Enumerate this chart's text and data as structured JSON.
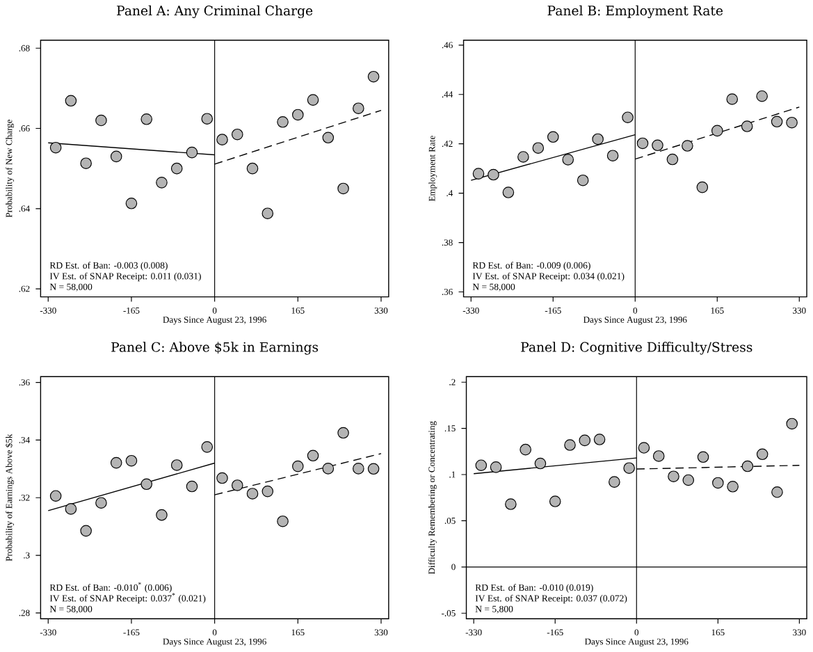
{
  "chart_data": [
    {
      "type": "scatter",
      "title": "Panel A: Any Criminal Charge",
      "xlabel": "Days Since August 23, 1996",
      "ylabel": "Probability of New Charge",
      "xlim": [
        -345,
        345
      ],
      "ylim": [
        0.618,
        0.682
      ],
      "xticks": [
        -330,
        -165,
        0,
        165,
        330
      ],
      "yticks": [
        {
          "value": 0.62,
          "label": ".62"
        },
        {
          "value": 0.64,
          "label": ".64"
        },
        {
          "value": 0.66,
          "label": ".66"
        },
        {
          "value": 0.68,
          "label": ".68"
        }
      ],
      "ref_lines": [
        {
          "axis": "x",
          "value": 0,
          "color": "#000000",
          "line_style": "solid"
        }
      ],
      "annotations": [
        "RD Est. of Ban: -0.003 (0.008)",
        "IV Est. of SNAP Receipt: 0.011 (0.031)",
        "N = 58,000"
      ],
      "series": [
        {
          "type": "scatter",
          "color": "#b4b4b4",
          "x": [
            -315,
            -285,
            -255,
            -225,
            -195,
            -165,
            -135,
            -105,
            -75,
            -45,
            -15
          ],
          "values": [
            0.6552,
            0.6669,
            0.6513,
            0.662,
            0.653,
            0.6413,
            0.6623,
            0.6465,
            0.65,
            0.654,
            0.6624
          ],
          "marker": "circle"
        },
        {
          "type": "scatter",
          "color": "#b4b4b4",
          "x": [
            15,
            45,
            75,
            105,
            135,
            165,
            195,
            225,
            255,
            285,
            315
          ],
          "values": [
            0.6572,
            0.6585,
            0.65,
            0.6388,
            0.6616,
            0.6634,
            0.6671,
            0.6577,
            0.645,
            0.665,
            0.6729
          ],
          "marker": "circle"
        },
        {
          "type": "line",
          "color": "#000000",
          "line_style": "solid",
          "x": [
            -330,
            0
          ],
          "values": [
            0.6564,
            0.6534
          ]
        },
        {
          "type": "line",
          "color": "#000000",
          "line_style": "dashed",
          "x": [
            0,
            330
          ],
          "values": [
            0.6511,
            0.6645
          ]
        }
      ]
    },
    {
      "type": "scatter",
      "title": "Panel B: Employment Rate",
      "xlabel": "Days Since August 23, 1996",
      "ylabel": "Employment Rate",
      "xlim": [
        -345,
        345
      ],
      "ylim": [
        0.358,
        0.462
      ],
      "xticks": [
        -330,
        -165,
        0,
        165,
        330
      ],
      "yticks": [
        {
          "value": 0.36,
          "label": ".36"
        },
        {
          "value": 0.38,
          "label": ".38"
        },
        {
          "value": 0.4,
          "label": ".4"
        },
        {
          "value": 0.42,
          "label": ".42"
        },
        {
          "value": 0.44,
          "label": ".44"
        },
        {
          "value": 0.46,
          "label": ".46"
        }
      ],
      "ref_lines": [
        {
          "axis": "x",
          "value": 0,
          "color": "#000000",
          "line_style": "solid"
        }
      ],
      "annotations": [
        "RD Est. of Ban: -0.009 (0.006)",
        "IV Est. of SNAP Receipt: 0.034 (0.021)",
        "N = 58,000"
      ],
      "series": [
        {
          "type": "scatter",
          "color": "#b4b4b4",
          "x": [
            -315,
            -285,
            -255,
            -225,
            -195,
            -165,
            -135,
            -105,
            -75,
            -45,
            -15
          ],
          "values": [
            0.4079,
            0.4075,
            0.4003,
            0.4147,
            0.4183,
            0.4228,
            0.4136,
            0.4052,
            0.4219,
            0.4152,
            0.4307
          ],
          "marker": "circle"
        },
        {
          "type": "scatter",
          "color": "#b4b4b4",
          "x": [
            15,
            45,
            75,
            105,
            135,
            165,
            195,
            225,
            255,
            285,
            315
          ],
          "values": [
            0.4202,
            0.4194,
            0.4137,
            0.4192,
            0.4024,
            0.4253,
            0.4381,
            0.4271,
            0.4393,
            0.429,
            0.4286
          ],
          "marker": "circle"
        },
        {
          "type": "line",
          "color": "#000000",
          "line_style": "solid",
          "x": [
            -330,
            0
          ],
          "values": [
            0.4052,
            0.4237
          ]
        },
        {
          "type": "line",
          "color": "#000000",
          "line_style": "dashed",
          "x": [
            0,
            330
          ],
          "values": [
            0.4138,
            0.4349
          ]
        }
      ]
    },
    {
      "type": "scatter",
      "title": "Panel C: Above $5k in Earnings",
      "xlabel": "Days Since August 23, 1996",
      "ylabel": "Probability of Earnings Above $5k",
      "xlim": [
        -345,
        345
      ],
      "ylim": [
        0.278,
        0.362
      ],
      "xticks": [
        -330,
        -165,
        0,
        165,
        330
      ],
      "yticks": [
        {
          "value": 0.28,
          "label": ".28"
        },
        {
          "value": 0.3,
          "label": ".3"
        },
        {
          "value": 0.32,
          "label": ".32"
        },
        {
          "value": 0.34,
          "label": ".34"
        },
        {
          "value": 0.36,
          "label": ".36"
        }
      ],
      "ref_lines": [
        {
          "axis": "x",
          "value": 0,
          "color": "#000000",
          "line_style": "solid"
        }
      ],
      "annotations": [
        "RD Est. of Ban: -0.010$^{*}$ (0.006)",
        "IV Est. of SNAP Receipt: 0.037$^{*}$ (0.021)",
        "N = 58,000"
      ],
      "series": [
        {
          "type": "scatter",
          "color": "#b4b4b4",
          "x": [
            -315,
            -285,
            -255,
            -225,
            -195,
            -165,
            -135,
            -105,
            -75,
            -45,
            -15
          ],
          "values": [
            0.3206,
            0.3161,
            0.3085,
            0.3182,
            0.3321,
            0.3328,
            0.3247,
            0.314,
            0.3313,
            0.3239,
            0.3376
          ],
          "marker": "circle"
        },
        {
          "type": "scatter",
          "color": "#b4b4b4",
          "x": [
            15,
            45,
            75,
            105,
            135,
            165,
            195,
            225,
            255,
            285,
            315
          ],
          "values": [
            0.3268,
            0.3243,
            0.3214,
            0.3222,
            0.3118,
            0.3309,
            0.3346,
            0.3301,
            0.3425,
            0.3301,
            0.33
          ],
          "marker": "circle"
        },
        {
          "type": "line",
          "color": "#000000",
          "line_style": "solid",
          "x": [
            -330,
            0
          ],
          "values": [
            0.3155,
            0.332
          ]
        },
        {
          "type": "line",
          "color": "#000000",
          "line_style": "dashed",
          "x": [
            0,
            330
          ],
          "values": [
            0.321,
            0.3353
          ]
        }
      ]
    },
    {
      "type": "scatter",
      "title": "Panel D: Cognitive Difficulty/Stress",
      "xlabel": "Days Since August 23, 1996",
      "ylabel": "Difficulty Remembering or Concentrating",
      "xlim": [
        -345,
        345
      ],
      "ylim": [
        -0.056,
        0.206
      ],
      "xticks": [
        -330,
        -165,
        0,
        165,
        330
      ],
      "yticks": [
        {
          "value": -0.05,
          "label": "-.05"
        },
        0,
        {
          "value": 0.05,
          "label": ".05"
        },
        {
          "value": 0.1,
          "label": ".1"
        },
        {
          "value": 0.15,
          "label": ".15"
        },
        {
          "value": 0.2,
          "label": ".2"
        }
      ],
      "ref_lines": [
        {
          "axis": "x",
          "value": 0,
          "color": "#000000",
          "line_style": "solid"
        },
        {
          "axis": "y",
          "value": 0,
          "color": "#000000",
          "line_style": "solid"
        }
      ],
      "annotations": [
        "RD Est. of Ban: -0.010 (0.019)",
        "IV Est. of SNAP Receipt: 0.037 (0.072)",
        "N = 5,800"
      ],
      "series": [
        {
          "type": "scatter",
          "color": "#b4b4b4",
          "x": [
            -315,
            -285,
            -255,
            -225,
            -195,
            -165,
            -135,
            -105,
            -75,
            -45,
            -15
          ],
          "values": [
            0.11,
            0.108,
            0.068,
            0.127,
            0.112,
            0.071,
            0.132,
            0.137,
            0.138,
            0.092,
            0.107
          ],
          "marker": "circle"
        },
        {
          "type": "scatter",
          "color": "#b4b4b4",
          "x": [
            15,
            45,
            75,
            105,
            135,
            165,
            195,
            225,
            255,
            285,
            315
          ],
          "values": [
            0.129,
            0.12,
            0.098,
            0.094,
            0.119,
            0.091,
            0.087,
            0.109,
            0.122,
            0.081,
            0.155
          ],
          "marker": "circle"
        },
        {
          "type": "line",
          "color": "#000000",
          "line_style": "solid",
          "x": [
            -330,
            0
          ],
          "values": [
            0.101,
            0.118
          ]
        },
        {
          "type": "line",
          "color": "#000000",
          "line_style": "dashed",
          "x": [
            0,
            330
          ],
          "values": [
            0.106,
            0.11
          ]
        }
      ]
    }
  ]
}
